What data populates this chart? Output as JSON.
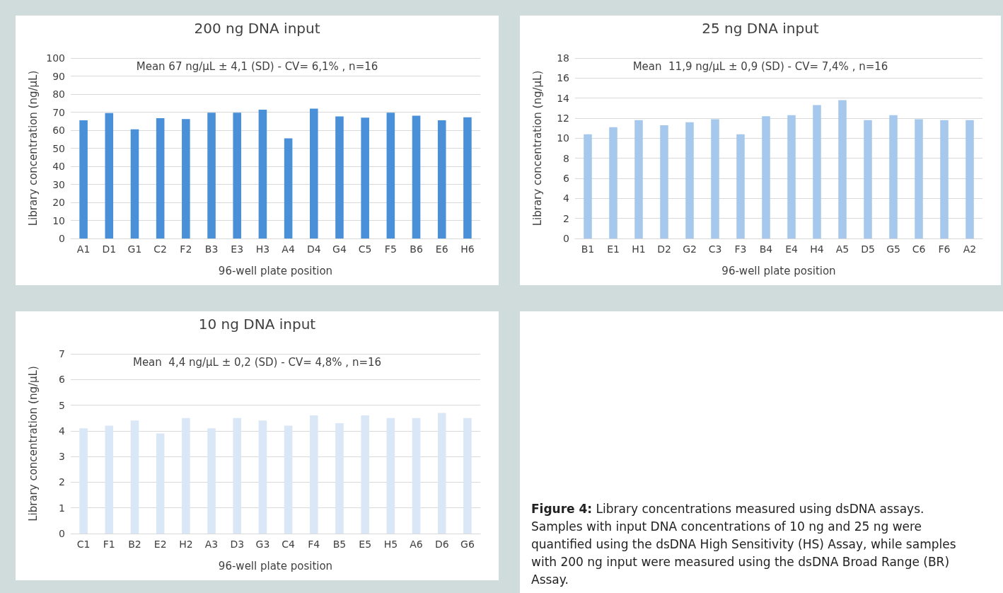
{
  "chart_data": [
    {
      "type": "bar",
      "title": "200 ng DNA input",
      "xlabel": "96-well plate position",
      "ylabel": "Library concentration (ng/µL)",
      "annotations": [
        "Mean 67 ng/µL ± 4,1 (SD) - CV= 6,1% , n=16"
      ],
      "categories": [
        "A1",
        "D1",
        "G1",
        "C2",
        "F2",
        "B3",
        "E3",
        "H3",
        "A4",
        "D4",
        "G4",
        "C5",
        "F5",
        "B6",
        "E6",
        "H6"
      ],
      "series": [
        {
          "color": "#4a90d9",
          "values": [
            65.5,
            69.5,
            60.5,
            66.7,
            66.2,
            69.7,
            69.7,
            71.4,
            55.5,
            72,
            67.6,
            67,
            69.7,
            68,
            65.5,
            67.2
          ]
        }
      ],
      "ylim": [
        0,
        100
      ],
      "yticks": [
        0,
        10,
        20,
        30,
        40,
        50,
        60,
        70,
        80,
        90,
        100
      ],
      "grid": "y"
    },
    {
      "type": "bar",
      "title": "25 ng DNA input",
      "xlabel": "96-well plate position",
      "ylabel": "Library concentration (ng/µL)",
      "annotations": [
        "Mean  11,9 ng/µL ± 0,9 (SD) - CV= 7,4% , n=16"
      ],
      "categories": [
        "B1",
        "E1",
        "H1",
        "D2",
        "G2",
        "C3",
        "F3",
        "B4",
        "E4",
        "H4",
        "A5",
        "D5",
        "G5",
        "C6",
        "F6",
        "A2"
      ],
      "series": [
        {
          "color": "#a5c8ec",
          "values": [
            10.4,
            11.1,
            11.8,
            11.3,
            11.6,
            11.9,
            10.4,
            12.2,
            12.3,
            13.3,
            13.8,
            11.8,
            12.3,
            11.9,
            11.8,
            11.8
          ]
        }
      ],
      "ylim": [
        0,
        18
      ],
      "yticks": [
        0,
        2,
        4,
        6,
        8,
        10,
        12,
        14,
        16,
        18
      ],
      "grid": "y"
    },
    {
      "type": "bar",
      "title": "10 ng DNA input",
      "xlabel": "96-well plate position",
      "ylabel": "Library concentration (ng/µL)",
      "annotations": [
        "Mean  4,4 ng/µL ± 0,2 (SD) - CV= 4,8% , n=16"
      ],
      "categories": [
        "C1",
        "F1",
        "B2",
        "E2",
        "H2",
        "A3",
        "D3",
        "G3",
        "C4",
        "F4",
        "B5",
        "E5",
        "H5",
        "A6",
        "D6",
        "G6"
      ],
      "series": [
        {
          "color": "#dae7f6",
          "values": [
            4.1,
            4.2,
            4.4,
            3.9,
            4.5,
            4.1,
            4.5,
            4.4,
            4.2,
            4.6,
            4.3,
            4.6,
            4.5,
            4.5,
            4.7,
            4.5
          ]
        }
      ],
      "ylim": [
        0,
        7
      ],
      "yticks": [
        0,
        1,
        2,
        3,
        4,
        5,
        6,
        7
      ],
      "grid": "y"
    },
    {
      "type": "other",
      "title": "Figure 4:",
      "annotations": [
        "Library concentrations measured using dsDNA assays. Samples with input DNA concentrations of 10 ng and 25 ng were quantified using the dsDNA High Sensitivity (HS) Assay, while samples with 200 ng input were measured using the dsDNA Broad Range (BR) Assay."
      ]
    }
  ]
}
